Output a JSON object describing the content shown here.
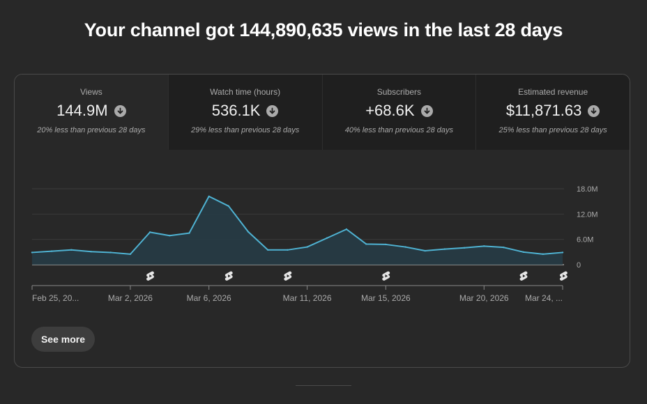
{
  "headline": "Your channel got 144,890,635 views in the last 28 days",
  "tabs": [
    {
      "label": "Views",
      "value": "144.9M",
      "comparison": "20% less than previous 28 days",
      "icon": "arrow-down-circle-icon"
    },
    {
      "label": "Watch time (hours)",
      "value": "536.1K",
      "comparison": "29% less than previous 28 days",
      "icon": "arrow-down-circle-icon"
    },
    {
      "label": "Subscribers",
      "value": "+68.6K",
      "comparison": "40% less than previous 28 days",
      "icon": "arrow-down-circle-icon"
    },
    {
      "label": "Estimated revenue",
      "value": "$11,871.63",
      "comparison": "25% less than previous 28 days",
      "icon": "arrow-down-circle-icon"
    }
  ],
  "chart_data": {
    "type": "area",
    "series_name": "Views",
    "ylim": [
      0,
      18
    ],
    "yticks": [
      {
        "v": 18,
        "label": "18.0M"
      },
      {
        "v": 12,
        "label": "12.0M"
      },
      {
        "v": 6,
        "label": "6.0M"
      },
      {
        "v": 0,
        "label": "0"
      }
    ],
    "values": [
      2.9,
      3.2,
      3.5,
      3.1,
      2.9,
      2.5,
      7.7,
      6.9,
      7.5,
      16.2,
      13.9,
      7.8,
      3.5,
      3.5,
      4.2,
      6.3,
      8.4,
      4.9,
      4.8,
      4.2,
      3.3,
      3.7,
      4.0,
      4.4,
      4.1,
      3.0,
      2.5,
      2.9
    ],
    "xticks": [
      {
        "i": 0,
        "label": "Feb 25, 20..."
      },
      {
        "i": 5,
        "label": "Mar 2, 2026"
      },
      {
        "i": 9,
        "label": "Mar 6, 2026"
      },
      {
        "i": 14,
        "label": "Mar 11, 2026"
      },
      {
        "i": 18,
        "label": "Mar 15, 2026"
      },
      {
        "i": 23,
        "label": "Mar 20, 2026"
      },
      {
        "i": 27,
        "label": "Mar 24, ..."
      }
    ],
    "shorts_markers": [
      6,
      10,
      13,
      18,
      25,
      27
    ],
    "marker_icon": "shorts-icon",
    "line_color": "#4fb3d3",
    "fill_color": "#263c47"
  },
  "see_more": "See more"
}
